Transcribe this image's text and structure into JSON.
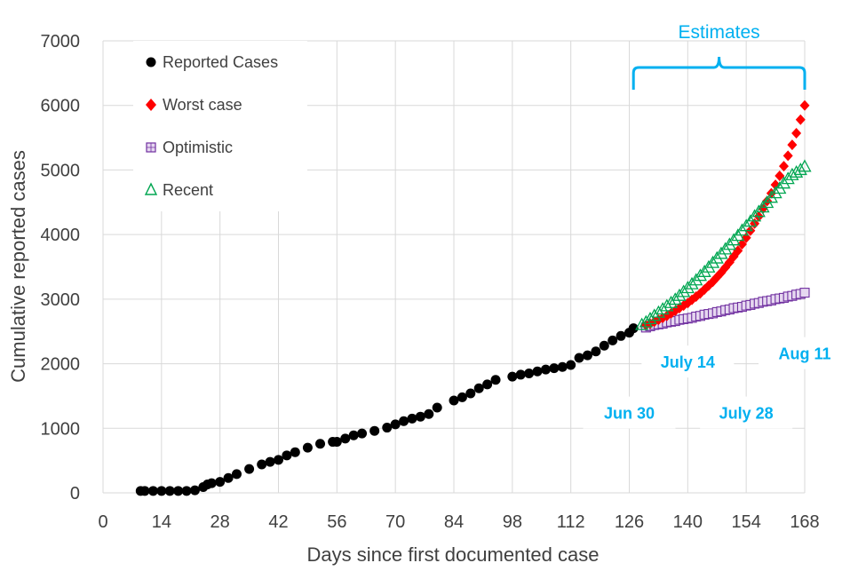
{
  "chart_data": {
    "type": "scatter",
    "xlabel": "Days since first documented case",
    "ylabel": "Cumulative reported cases",
    "xlim": [
      0,
      168
    ],
    "ylim": [
      0,
      7000
    ],
    "x_ticks": [
      0,
      14,
      28,
      42,
      56,
      70,
      84,
      98,
      112,
      126,
      140,
      154,
      168
    ],
    "y_ticks": [
      0,
      1000,
      2000,
      3000,
      4000,
      5000,
      6000,
      7000
    ],
    "grid": "vertical and horizontal, light gray",
    "legend_position": "top-left",
    "series": [
      {
        "name": "Reported Cases",
        "marker": "circle",
        "color": "#000000",
        "x": [
          9,
          10,
          12,
          14,
          16,
          18,
          20,
          22,
          24,
          25,
          26,
          28,
          30,
          32,
          35,
          38,
          40,
          42,
          44,
          46,
          49,
          52,
          55,
          56,
          58,
          60,
          62,
          65,
          68,
          70,
          72,
          74,
          76,
          78,
          80,
          84,
          86,
          88,
          90,
          92,
          94,
          98,
          100,
          102,
          104,
          106,
          108,
          110,
          112,
          114,
          116,
          118,
          120,
          122,
          124,
          126,
          127
        ],
        "y": [
          30,
          30,
          30,
          30,
          30,
          30,
          30,
          40,
          90,
          130,
          150,
          170,
          230,
          290,
          370,
          440,
          480,
          510,
          580,
          630,
          700,
          760,
          790,
          790,
          840,
          890,
          920,
          960,
          1010,
          1060,
          1110,
          1150,
          1180,
          1220,
          1320,
          1430,
          1480,
          1540,
          1620,
          1680,
          1750,
          1800,
          1830,
          1850,
          1880,
          1910,
          1930,
          1950,
          1980,
          2090,
          2130,
          2190,
          2280,
          2360,
          2430,
          2480,
          2550
        ]
      },
      {
        "name": "Worst case",
        "marker": "diamond",
        "color": "#ff0000",
        "x": [
          130,
          131,
          132,
          133,
          134,
          135,
          136,
          137,
          138,
          139,
          140,
          141,
          142,
          143,
          144,
          145,
          146,
          147,
          148,
          149,
          150,
          151,
          152,
          153,
          154,
          155,
          156,
          157,
          158,
          159,
          160,
          161,
          162,
          163,
          164,
          165,
          166,
          167,
          168
        ],
        "y": [
          2600,
          2620,
          2650,
          2680,
          2710,
          2740,
          2780,
          2820,
          2860,
          2900,
          2940,
          2990,
          3040,
          3090,
          3150,
          3210,
          3270,
          3340,
          3410,
          3490,
          3570,
          3660,
          3750,
          3850,
          3950,
          4060,
          4170,
          4280,
          4400,
          4520,
          4640,
          4770,
          4910,
          5060,
          5220,
          5390,
          5570,
          5780,
          6000
        ]
      },
      {
        "name": "Optimistic",
        "marker": "square",
        "color": "#7030a0",
        "x": [
          130,
          131,
          132,
          133,
          134,
          135,
          136,
          137,
          138,
          139,
          140,
          141,
          142,
          143,
          144,
          145,
          146,
          147,
          148,
          149,
          150,
          151,
          152,
          153,
          154,
          155,
          156,
          157,
          158,
          159,
          160,
          161,
          162,
          163,
          164,
          165,
          166,
          167,
          168
        ],
        "y": [
          2560,
          2580,
          2600,
          2610,
          2620,
          2640,
          2650,
          2660,
          2680,
          2690,
          2700,
          2710,
          2730,
          2740,
          2760,
          2770,
          2780,
          2800,
          2810,
          2830,
          2840,
          2860,
          2870,
          2880,
          2900,
          2910,
          2930,
          2940,
          2960,
          2970,
          2980,
          3000,
          3010,
          3020,
          3040,
          3050,
          3070,
          3080,
          3100
        ]
      },
      {
        "name": "Recent",
        "marker": "triangle",
        "color": "#00a651",
        "x": [
          129,
          130,
          131,
          132,
          133,
          134,
          135,
          136,
          137,
          138,
          139,
          140,
          141,
          142,
          143,
          144,
          145,
          146,
          147,
          148,
          149,
          150,
          151,
          152,
          153,
          154,
          155,
          156,
          157,
          158,
          159,
          160,
          161,
          162,
          163,
          164,
          165,
          166,
          167,
          168
        ],
        "y": [
          2600,
          2640,
          2690,
          2740,
          2790,
          2840,
          2890,
          2940,
          2990,
          3050,
          3110,
          3170,
          3230,
          3290,
          3360,
          3420,
          3490,
          3560,
          3630,
          3700,
          3770,
          3840,
          3910,
          3980,
          4060,
          4130,
          4200,
          4280,
          4350,
          4420,
          4490,
          4570,
          4640,
          4710,
          4790,
          4860,
          4920,
          4960,
          5000,
          5050
        ]
      }
    ],
    "annotations": {
      "estimates_label": "Estimates",
      "estimates_range": [
        127,
        168
      ],
      "date_labels": [
        {
          "text": "Jun 30",
          "x": 126,
          "y": 1230
        },
        {
          "text": "July 14",
          "x": 140,
          "y": 2020
        },
        {
          "text": "July 28",
          "x": 154,
          "y": 1230
        },
        {
          "text": "Aug 11",
          "x": 168,
          "y": 2150
        }
      ],
      "color": "#00b0f0"
    }
  }
}
